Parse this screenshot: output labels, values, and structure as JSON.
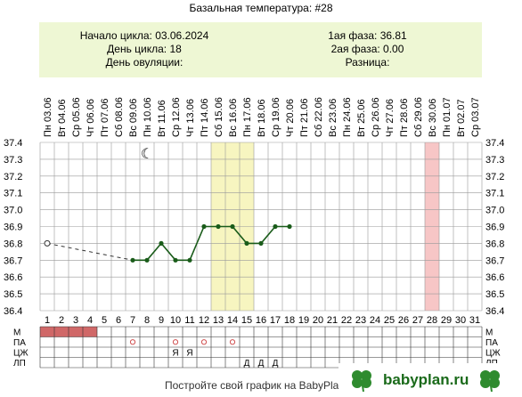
{
  "title": "Базальная температура: #28",
  "info": {
    "cycle_start_label": "Начало цикла:",
    "cycle_start": "03.06.2024",
    "cycle_day_label": "День цикла:",
    "cycle_day": "18",
    "ovulation_day_label": "День овуляции:",
    "ovulation_day": "",
    "phase1_label": "1ая фаза:",
    "phase1": "36.81",
    "phase2_label": "2ая фаза:",
    "phase2": "0.00",
    "diff_label": "Разница:",
    "diff": ""
  },
  "colors": {
    "line": "#1a5c1a",
    "highlight": "#f7f5c0",
    "pink": "#f7c6c6",
    "menses": "#d06868",
    "grid": "#999999",
    "info_bg": "#eef7d4"
  },
  "chart_data": {
    "type": "line",
    "weekdays": [
      "Пн",
      "Вт",
      "Ср",
      "Чт",
      "Пт",
      "Сб",
      "Вс",
      "Пн",
      "Вт",
      "Ср",
      "Чт",
      "Пт",
      "Сб",
      "Вс",
      "Пн",
      "Вт",
      "Ср",
      "Чт",
      "Пт",
      "Сб",
      "Вс",
      "Пн",
      "Вт",
      "Ср",
      "Чт",
      "Пт",
      "Сб",
      "Вс",
      "Пн",
      "Вт",
      "Ср"
    ],
    "dates": [
      "03.06",
      "04.06",
      "05.06",
      "06.06",
      "07.06",
      "08.06",
      "09.06",
      "10.06",
      "11.06",
      "12.06",
      "13.06",
      "14.06",
      "15.06",
      "16.06",
      "17.06",
      "18.06",
      "19.06",
      "20.06",
      "21.06",
      "22.06",
      "23.06",
      "24.06",
      "25.06",
      "26.06",
      "27.06",
      "28.06",
      "29.06",
      "30.06",
      "01.07",
      "02.07",
      "03.07"
    ],
    "days": [
      1,
      2,
      3,
      4,
      5,
      6,
      7,
      8,
      9,
      10,
      11,
      12,
      13,
      14,
      15,
      16,
      17,
      18,
      19,
      20,
      21,
      22,
      23,
      24,
      25,
      26,
      27,
      28,
      29,
      30,
      31
    ],
    "y_ticks": [
      "37.4",
      "37.3",
      "37.2",
      "37.1",
      "37.0",
      "36.9",
      "36.8",
      "36.7",
      "36.6",
      "36.5",
      "36.4"
    ],
    "ylim": [
      36.4,
      37.4
    ],
    "first_point": {
      "day": 1,
      "value": 36.8
    },
    "points": [
      {
        "day": 7,
        "value": 36.7
      },
      {
        "day": 8,
        "value": 36.7
      },
      {
        "day": 9,
        "value": 36.8
      },
      {
        "day": 10,
        "value": 36.7
      },
      {
        "day": 11,
        "value": 36.7
      },
      {
        "day": 12,
        "value": 36.9
      },
      {
        "day": 13,
        "value": 36.9
      },
      {
        "day": 14,
        "value": 36.9
      },
      {
        "day": 15,
        "value": 36.8
      },
      {
        "day": 16,
        "value": 36.8
      },
      {
        "day": 17,
        "value": 36.9
      },
      {
        "day": 18,
        "value": 36.9
      }
    ],
    "highlight_days": [
      13,
      14,
      15
    ],
    "pink_days": [
      28
    ],
    "moon_day": 8,
    "rows": {
      "labels": [
        "М",
        "ПА",
        "ЦЖ",
        "ЛП"
      ],
      "menses_days": [
        1,
        2,
        3,
        4
      ],
      "pa_days": [
        7,
        10,
        12,
        14
      ],
      "cz_marks": [
        {
          "day": 10,
          "text": "Я"
        },
        {
          "day": 11,
          "text": "Я"
        }
      ],
      "lp_marks": [
        {
          "day": 15,
          "text": "Д"
        },
        {
          "day": 16,
          "text": "Д"
        },
        {
          "day": 17,
          "text": "Д"
        }
      ]
    }
  },
  "footer": "Постройте свой график на BabyPlan.ru",
  "logo": "babyplan.ru"
}
